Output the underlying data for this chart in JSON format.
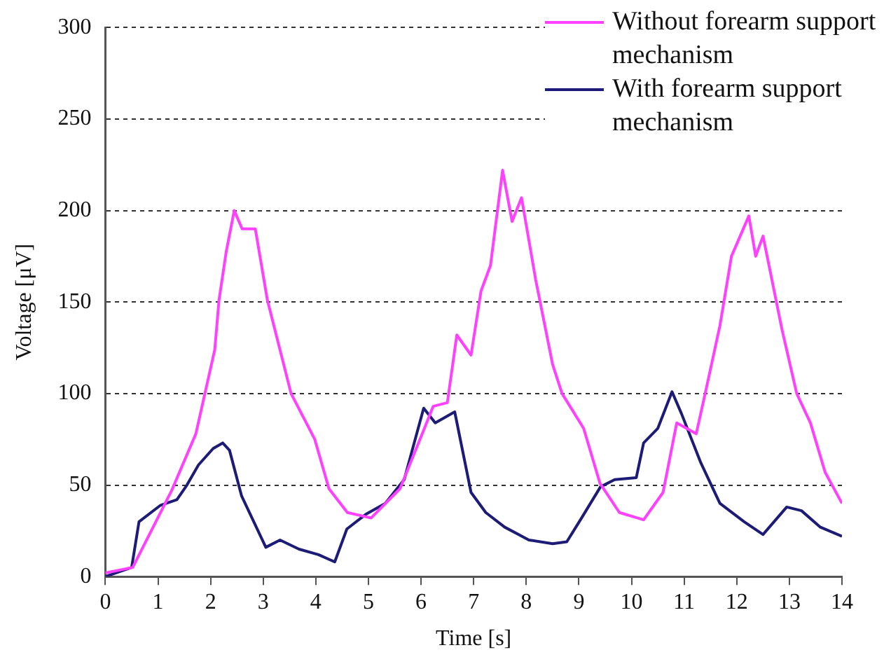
{
  "chart_data": {
    "type": "line",
    "xlabel": "Time [s]",
    "ylabel": "Voltage [μV]",
    "xlim": [
      0,
      14
    ],
    "xticks": [
      0,
      1,
      2,
      3,
      4,
      5,
      6,
      7,
      8,
      9,
      10,
      11,
      12,
      13,
      14
    ],
    "ylim": [
      0,
      300
    ],
    "yticks": [
      0,
      50,
      100,
      150,
      200,
      250,
      300
    ],
    "grid": "y",
    "legend": "top right",
    "marker": "none",
    "line_style": "solid",
    "series": [
      {
        "name": "Without forearm support mechanism",
        "color": "#ff40ff",
        "x": [
          0,
          0.52,
          1.26,
          1.72,
          2.08,
          2.16,
          2.3,
          2.45,
          2.6,
          2.85,
          3.08,
          3.53,
          3.98,
          4.25,
          4.6,
          5.05,
          5.6,
          6.05,
          6.23,
          6.5,
          6.68,
          6.95,
          7.14,
          7.32,
          7.55,
          7.73,
          7.91,
          8.18,
          8.5,
          8.68,
          9.09,
          9.4,
          9.77,
          10.23,
          10.6,
          10.86,
          11.23,
          11.4,
          11.68,
          11.9,
          12.23,
          12.36,
          12.5,
          12.86,
          13.14,
          13.4,
          13.68,
          14
        ],
        "values": [
          2,
          5,
          47,
          78,
          124,
          151,
          178,
          200,
          190,
          190,
          151,
          100,
          75,
          48,
          35,
          32,
          48,
          80,
          93,
          95,
          132,
          121,
          156,
          170,
          222,
          194,
          207,
          162,
          116,
          100,
          81,
          51,
          35,
          31,
          46,
          84,
          78,
          100,
          137,
          175,
          197,
          175,
          186,
          135,
          100,
          84,
          57,
          40
        ]
      },
      {
        "name": "With forearm support mechanism",
        "color": "#1c1c78",
        "x": [
          0,
          0.5,
          0.64,
          1.05,
          1.36,
          1.55,
          1.77,
          2.05,
          2.23,
          2.36,
          2.59,
          3.05,
          3.32,
          3.68,
          4.05,
          4.36,
          4.59,
          4.95,
          5.32,
          5.68,
          6.05,
          6.27,
          6.64,
          6.95,
          7.23,
          7.59,
          8.05,
          8.5,
          8.77,
          9.05,
          9.41,
          9.68,
          10.09,
          10.23,
          10.5,
          10.77,
          10.95,
          11.32,
          11.68,
          12.14,
          12.5,
          12.95,
          13.23,
          13.59,
          14
        ],
        "values": [
          0,
          5,
          30,
          39,
          42,
          50,
          61,
          70,
          73,
          69,
          44,
          16,
          20,
          15,
          12,
          8,
          26,
          34,
          40,
          53,
          92,
          84,
          90,
          46,
          35,
          27,
          20,
          18,
          19,
          32,
          49,
          53,
          54,
          73,
          81,
          101,
          89,
          62,
          40,
          30,
          23,
          38,
          36,
          27,
          22
        ]
      }
    ]
  }
}
